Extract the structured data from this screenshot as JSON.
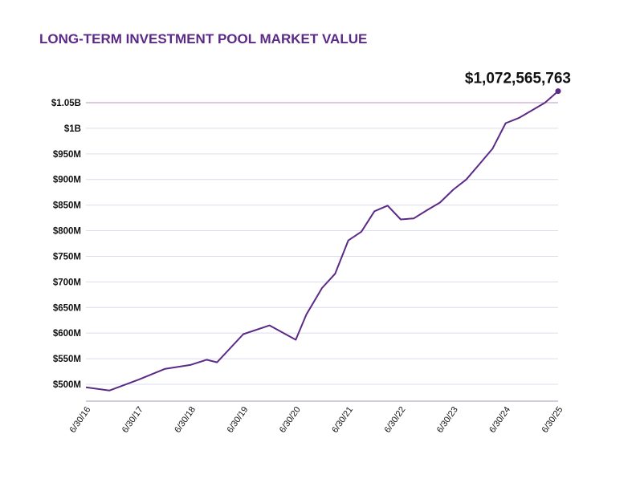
{
  "colors": {
    "line": "#5b2a86",
    "title": "#5b2a86",
    "grid": "#dcdcec",
    "top_grid": "#c9a9d3",
    "axis": "#bdbdd6"
  },
  "chart_data": {
    "type": "line",
    "title": "LONG-TERM INVESTMENT POOL MARKET VALUE",
    "xlabel": "",
    "ylabel": "",
    "ylim": [
      470000000,
      1070000000
    ],
    "y_ticks": [
      500000000,
      550000000,
      600000000,
      650000000,
      700000000,
      750000000,
      800000000,
      850000000,
      900000000,
      950000000,
      1000000000,
      1050000000
    ],
    "y_tick_labels": [
      "$500M",
      "$550M",
      "$600M",
      "$650M",
      "$700M",
      "$750M",
      "$800M",
      "$850M",
      "$900M",
      "$950M",
      "$1B",
      "$1.05B"
    ],
    "x_tick_labels": [
      "6/30/16",
      "6/30/17",
      "6/30/18",
      "6/30/19",
      "6/30/20",
      "6/30/21",
      "6/30/22",
      "6/30/23",
      "6/30/24",
      "6/30/25"
    ],
    "grid": true,
    "x_unit": "years",
    "series": [
      {
        "x": [
          2016.0,
          2016.45,
          2017.0,
          2017.5,
          2018.0,
          2018.3,
          2018.5,
          2019.0,
          2019.5,
          2020.0,
          2020.2,
          2020.5,
          2020.75,
          2021.0,
          2021.25,
          2021.5,
          2021.75,
          2022.0,
          2022.25,
          2022.5,
          2022.75,
          2023.0,
          2023.25,
          2023.5,
          2023.75,
          2024.0,
          2024.25,
          2024.5,
          2024.75,
          2025.0
        ],
        "values": [
          494000000,
          488000000,
          509000000,
          530000000,
          538000000,
          548000000,
          543000000,
          598000000,
          615000000,
          587000000,
          636000000,
          688000000,
          716000000,
          781000000,
          798000000,
          838000000,
          849000000,
          822000000,
          824000000,
          840000000,
          855000000,
          880000000,
          900000000,
          930000000,
          960000000,
          1010000000,
          1020000000,
          1035000000,
          1050000000,
          1072565763
        ]
      }
    ],
    "end_label": "$1,072,565,763"
  }
}
